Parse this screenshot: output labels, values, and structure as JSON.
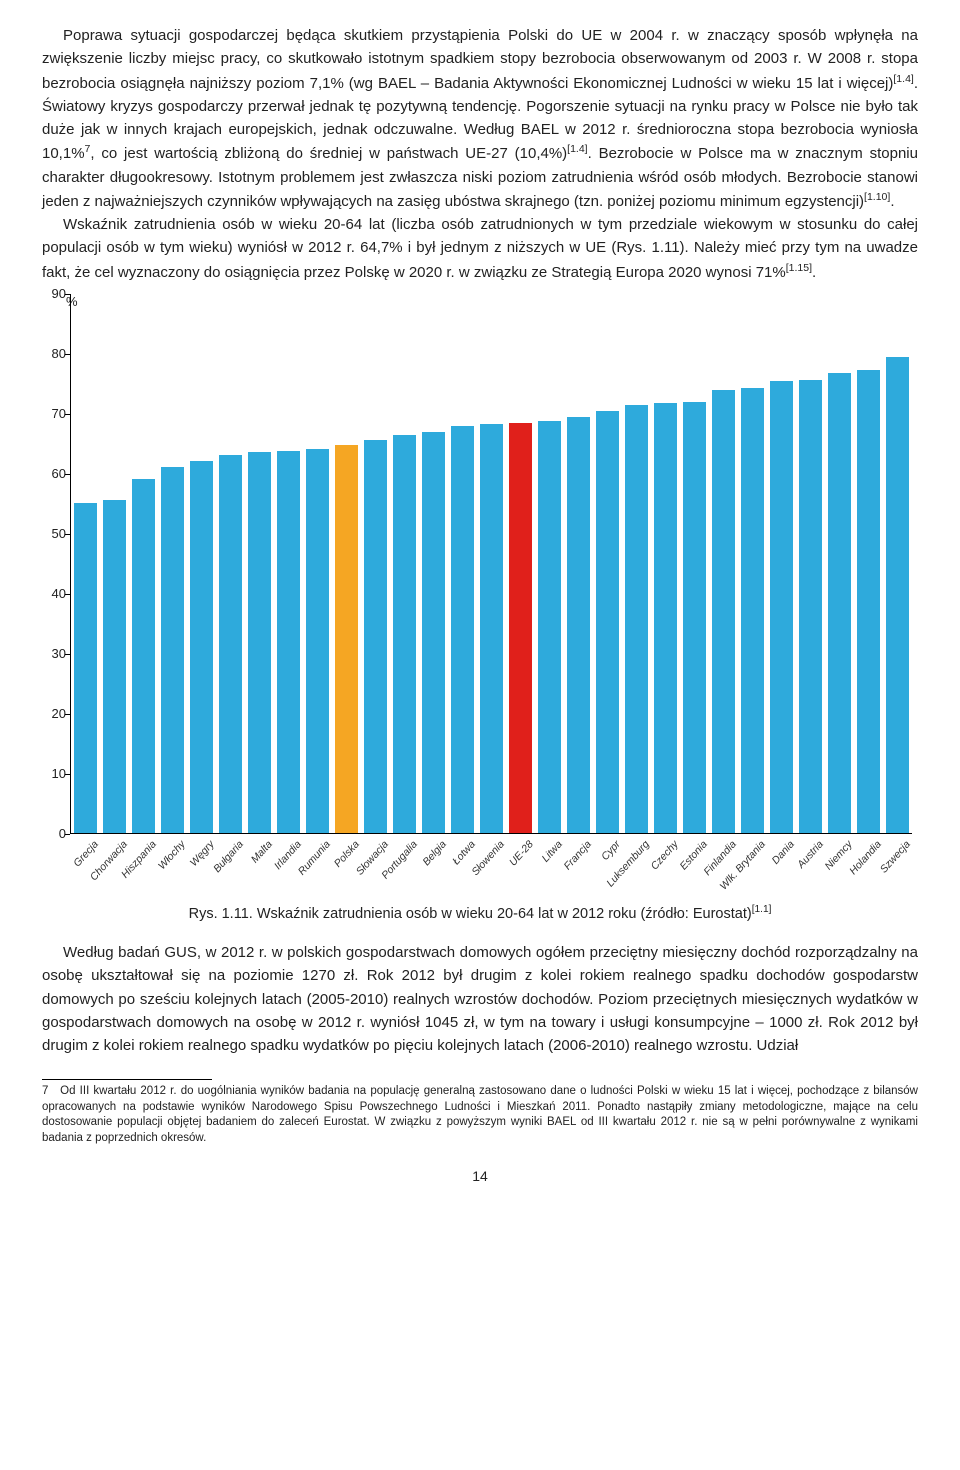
{
  "paragraphs": {
    "p1": "Poprawa sytuacji gospodarczej będąca skutkiem przystąpienia Polski do UE w 2004 r. w znaczący sposób wpłynęła na zwiększenie liczby miejsc pracy, co skutkowało istotnym spadkiem stopy bezrobocia obserwowanym od 2003 r. W 2008 r. stopa bezrobocia osiągnęła najniższy poziom 7,1% (wg BAEL – Badania Aktywności Ekonomicznej Ludności w wieku 15 lat i więcej)[1.4]. Światowy kryzys gospodarczy przerwał jednak tę pozytywną tendencję. Pogorszenie sytuacji na rynku pracy w Polsce nie było tak duże jak w innych krajach europejskich, jednak odczuwalne. Według BAEL w 2012 r. średnioroczna stopa bezrobocia wyniosła 10,1%7, co jest wartością zbliżoną do średniej w państwach UE-27 (10,4%)[1.4]. Bezrobocie w Polsce ma w znacznym stopniu charakter długookresowy. Istotnym problemem jest zwłaszcza niski poziom zatrudnienia wśród osób młodych. Bezrobocie stanowi jeden z najważniejszych czynników wpływających na zasięg ubóstwa skrajnego (tzn. poniżej poziomu minimum egzystencji)[1.10].",
    "p2": "Wskaźnik zatrudnienia osób w wieku 20-64 lat (liczba osób zatrudnionych w tym przedziale wiekowym w stosunku do całej populacji osób w tym wieku) wyniósł w 2012 r. 64,7% i był jednym z niższych w UE (Rys. 1.11). Należy mieć przy tym na uwadze fakt, że cel wyznaczony do osiągnięcia przez Polskę w 2020 r. w związku ze Strategią Europa 2020 wynosi 71%[1.15].",
    "p3": "Według badań GUS, w 2012 r. w polskich gospodarstwach domowych ogółem przeciętny miesięczny dochód rozporządzalny na osobę ukształtował się na poziomie 1270 zł. Rok 2012 był drugim z kolei rokiem realnego spadku dochodów gospodarstw domowych po sześciu kolejnych latach (2005-2010) realnych wzrostów dochodów. Poziom przeciętnych miesięcznych wydatków w gospodarstwach domowych na osobę w 2012 r. wyniósł 1045 zł, w tym na towary i usługi konsumpcyjne – 1000 zł. Rok 2012 był drugim z kolei rokiem realnego spadku wydatków po pięciu kolejnych latach (2006-2010) realnego wzrostu. Udział"
  },
  "chart": {
    "y_axis_unit": "%",
    "y_max": 90,
    "y_min": 0,
    "y_step": 10,
    "colors": {
      "default": "#2eaadc",
      "poland": "#f5a623",
      "eu28": "#e0201b"
    },
    "bars": [
      {
        "label": "Grecja",
        "value": 55,
        "c": "default"
      },
      {
        "label": "Chorwacja",
        "value": 55.5,
        "c": "default"
      },
      {
        "label": "Hiszpania",
        "value": 59,
        "c": "default"
      },
      {
        "label": "Włochy",
        "value": 61,
        "c": "default"
      },
      {
        "label": "Węgry",
        "value": 62,
        "c": "default"
      },
      {
        "label": "Bułgaria",
        "value": 63,
        "c": "default"
      },
      {
        "label": "Malta",
        "value": 63.5,
        "c": "default"
      },
      {
        "label": "Irlandia",
        "value": 63.8,
        "c": "default"
      },
      {
        "label": "Rumunia",
        "value": 64,
        "c": "default"
      },
      {
        "label": "Polska",
        "value": 64.7,
        "c": "poland"
      },
      {
        "label": "Słowacja",
        "value": 65.5,
        "c": "default"
      },
      {
        "label": "Portugalia",
        "value": 66.5,
        "c": "default"
      },
      {
        "label": "Belgia",
        "value": 67,
        "c": "default"
      },
      {
        "label": "Łotwa",
        "value": 68,
        "c": "default"
      },
      {
        "label": "Słowenia",
        "value": 68.2,
        "c": "default"
      },
      {
        "label": "UE-28",
        "value": 68.5,
        "c": "eu28"
      },
      {
        "label": "Litwa",
        "value": 68.7,
        "c": "default"
      },
      {
        "label": "Francja",
        "value": 69.5,
        "c": "default"
      },
      {
        "label": "Cypr",
        "value": 70.5,
        "c": "default"
      },
      {
        "label": "Luksemburg",
        "value": 71.5,
        "c": "default"
      },
      {
        "label": "Czechy",
        "value": 71.7,
        "c": "default"
      },
      {
        "label": "Estonia",
        "value": 72,
        "c": "default"
      },
      {
        "label": "Finlandia",
        "value": 74,
        "c": "default"
      },
      {
        "label": "Wlk. Brytania",
        "value": 74.2,
        "c": "default"
      },
      {
        "label": "Dania",
        "value": 75.4,
        "c": "default"
      },
      {
        "label": "Austria",
        "value": 75.6,
        "c": "default"
      },
      {
        "label": "Niemcy",
        "value": 76.7,
        "c": "default"
      },
      {
        "label": "Holandia",
        "value": 77.2,
        "c": "default"
      },
      {
        "label": "Szwecja",
        "value": 79.4,
        "c": "default"
      }
    ],
    "caption": "Rys. 1.11. Wskaźnik zatrudnienia osób w wieku 20-64 lat w 2012 roku (źródło: Eurostat)[1.1]"
  },
  "footnote": {
    "num": "7",
    "text": "Od III kwartału 2012 r. do uogólniania wyników badania na populację generalną zastosowano dane o ludności Polski w wieku 15 lat i więcej, pochodzące z bilansów opracowanych na podstawie wyników Narodowego Spisu Powszechnego Ludności i Mieszkań 2011. Ponadto nastąpiły zmiany metodologiczne, mające na celu dostosowanie populacji objętej badaniem do zaleceń Eurostat. W związku z powyższym wyniki BAEL od III kwartału 2012 r. nie są w pełni porównywalne z wynikami badania z poprzednich okresów."
  },
  "page_number": "14"
}
